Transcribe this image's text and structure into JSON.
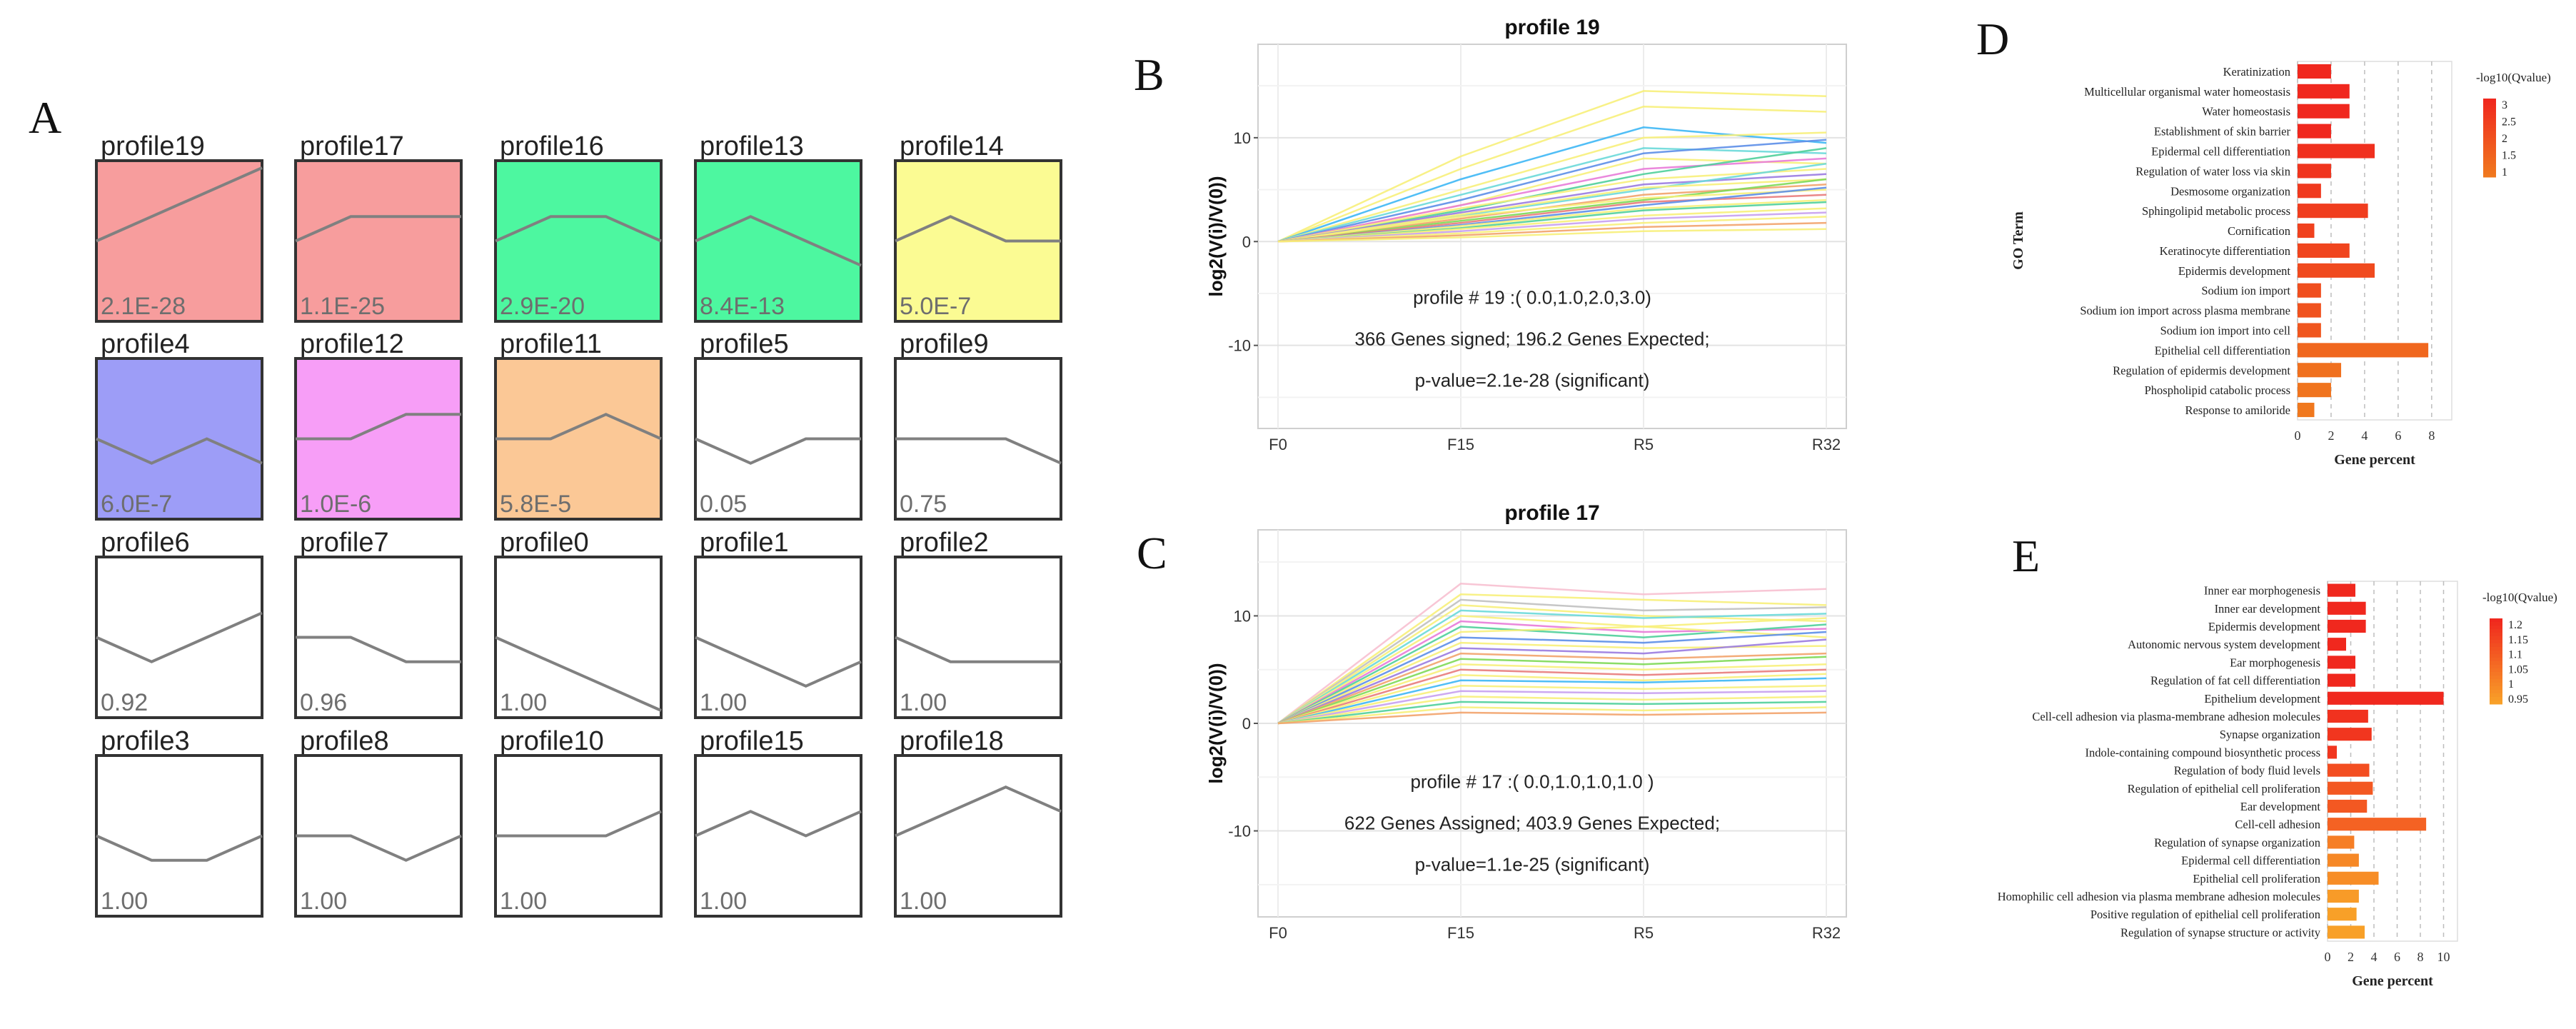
{
  "panels": {
    "A": "A",
    "B": "B",
    "C": "C",
    "D": "D",
    "E": "E"
  },
  "chart_data": [
    {
      "panel": "A",
      "type": "profile_grid",
      "x_points": 4,
      "profiles": [
        {
          "name": "profile19",
          "pvalue": "2.1E-28",
          "values": [
            0,
            1,
            2,
            3
          ],
          "color": "#f79d9d"
        },
        {
          "name": "profile17",
          "pvalue": "1.1E-25",
          "values": [
            0,
            1,
            1,
            1
          ],
          "color": "#f79d9d"
        },
        {
          "name": "profile16",
          "pvalue": "2.9E-20",
          "values": [
            0,
            1,
            1,
            0
          ],
          "color": "#4df7a0"
        },
        {
          "name": "profile13",
          "pvalue": "8.4E-13",
          "values": [
            0,
            1,
            0,
            -1
          ],
          "color": "#4df7a0"
        },
        {
          "name": "profile14",
          "pvalue": "5.0E-7",
          "values": [
            0,
            1,
            0,
            0
          ],
          "color": "#fbfb93"
        },
        {
          "name": "profile4",
          "pvalue": "6.0E-7",
          "values": [
            0,
            -1,
            0,
            -1
          ],
          "color": "#9d9df7"
        },
        {
          "name": "profile12",
          "pvalue": "1.0E-6",
          "values": [
            0,
            0,
            1,
            1
          ],
          "color": "#f79ef7"
        },
        {
          "name": "profile11",
          "pvalue": "5.8E-5",
          "values": [
            0,
            0,
            1,
            0
          ],
          "color": "#fbc896"
        },
        {
          "name": "profile5",
          "pvalue": "0.05",
          "values": [
            0,
            -1,
            0,
            0
          ],
          "color": "#ffffff"
        },
        {
          "name": "profile9",
          "pvalue": "0.75",
          "values": [
            0,
            0,
            0,
            -1
          ],
          "color": "#ffffff"
        },
        {
          "name": "profile6",
          "pvalue": "0.92",
          "values": [
            0,
            -1,
            0,
            1
          ],
          "color": "#ffffff"
        },
        {
          "name": "profile7",
          "pvalue": "0.96",
          "values": [
            0,
            0,
            -1,
            -1
          ],
          "color": "#ffffff"
        },
        {
          "name": "profile0",
          "pvalue": "1.00",
          "values": [
            0,
            -1,
            -2,
            -3
          ],
          "color": "#ffffff"
        },
        {
          "name": "profile1",
          "pvalue": "1.00",
          "values": [
            0,
            -1,
            -2,
            -1
          ],
          "color": "#ffffff"
        },
        {
          "name": "profile2",
          "pvalue": "1.00",
          "values": [
            0,
            -1,
            -1,
            -1
          ],
          "color": "#ffffff"
        },
        {
          "name": "profile3",
          "pvalue": "1.00",
          "values": [
            0,
            -1,
            -1,
            0
          ],
          "color": "#ffffff"
        },
        {
          "name": "profile8",
          "pvalue": "1.00",
          "values": [
            0,
            0,
            -1,
            0
          ],
          "color": "#ffffff"
        },
        {
          "name": "profile10",
          "pvalue": "1.00",
          "values": [
            0,
            0,
            0,
            1
          ],
          "color": "#ffffff"
        },
        {
          "name": "profile15",
          "pvalue": "1.00",
          "values": [
            0,
            1,
            0,
            1
          ],
          "color": "#ffffff"
        },
        {
          "name": "profile18",
          "pvalue": "1.00",
          "values": [
            0,
            1,
            2,
            1
          ],
          "color": "#ffffff"
        }
      ]
    },
    {
      "panel": "B",
      "type": "line",
      "title": "profile 19",
      "ylabel": "log2(V(i)/V(0))",
      "categories": [
        "F0",
        "F15",
        "R5",
        "R32"
      ],
      "yticks": [
        -10,
        0,
        10
      ],
      "ylim": [
        -18,
        19
      ],
      "annotations": [
        "profile # 19 :( 0.0,1.0,2.0,3.0)",
        "366 Genes signed; 196.2 Genes Expected;",
        "p-value=2.1e-28 (significant)"
      ],
      "series": [
        {
          "values": [
            0,
            8.2,
            14.5,
            14.0
          ],
          "color": "#f7f07a"
        },
        {
          "values": [
            0,
            7.0,
            13.0,
            12.5
          ],
          "color": "#f7f07a"
        },
        {
          "values": [
            0,
            6.0,
            11.0,
            9.5
          ],
          "color": "#3db7f5"
        },
        {
          "values": [
            0,
            5.0,
            10.0,
            10.5
          ],
          "color": "#f7f07a"
        },
        {
          "values": [
            0,
            4.5,
            9.0,
            8.5
          ],
          "color": "#6ad9d9"
        },
        {
          "values": [
            0,
            4.0,
            8.5,
            9.8
          ],
          "color": "#5c8ee8"
        },
        {
          "values": [
            0,
            3.5,
            8.0,
            7.5
          ],
          "color": "#f7f07a"
        },
        {
          "values": [
            0,
            3.5,
            7.0,
            8.0
          ],
          "color": "#e87bd8"
        },
        {
          "values": [
            0,
            3.0,
            6.5,
            9.0
          ],
          "color": "#4fcf9a"
        },
        {
          "values": [
            0,
            3.2,
            6.0,
            7.0
          ],
          "color": "#f7f07a"
        },
        {
          "values": [
            0,
            2.8,
            5.5,
            6.5
          ],
          "color": "#9a7be0"
        },
        {
          "values": [
            0,
            2.5,
            5.0,
            7.5
          ],
          "color": "#6ad9d9"
        },
        {
          "values": [
            0,
            2.6,
            5.2,
            6.0
          ],
          "color": "#f7f07a"
        },
        {
          "values": [
            0,
            2.2,
            4.5,
            5.5
          ],
          "color": "#f2a36b"
        },
        {
          "values": [
            0,
            2.0,
            4.0,
            6.0
          ],
          "color": "#7ed957"
        },
        {
          "values": [
            0,
            2.4,
            4.2,
            5.0
          ],
          "color": "#f7f07a"
        },
        {
          "values": [
            0,
            1.8,
            3.8,
            4.5
          ],
          "color": "#e87b7b"
        },
        {
          "values": [
            0,
            1.6,
            3.5,
            5.2
          ],
          "color": "#5c8ee8"
        },
        {
          "values": [
            0,
            1.5,
            3.2,
            4.0
          ],
          "color": "#f7f07a"
        },
        {
          "values": [
            0,
            1.3,
            3.0,
            3.8
          ],
          "color": "#4fcf9a"
        },
        {
          "values": [
            0,
            1.2,
            2.5,
            3.2
          ],
          "color": "#f7f07a"
        },
        {
          "values": [
            0,
            1.0,
            2.2,
            2.8
          ],
          "color": "#c7a0f0"
        },
        {
          "values": [
            0,
            0.8,
            1.8,
            2.4
          ],
          "color": "#f7f07a"
        },
        {
          "values": [
            0,
            0.6,
            1.4,
            1.8
          ],
          "color": "#f2a36b"
        },
        {
          "values": [
            0,
            0.4,
            1.0,
            1.2
          ],
          "color": "#f7f07a"
        }
      ]
    },
    {
      "panel": "C",
      "type": "line",
      "title": "profile 17",
      "ylabel": "log2(V(i)/V(0))",
      "categories": [
        "F0",
        "F15",
        "R5",
        "R32"
      ],
      "yticks": [
        -10,
        0,
        10
      ],
      "ylim": [
        -18,
        18
      ],
      "annotations": [
        "profile # 17 :( 0.0,1.0,1.0,1.0 )",
        "622 Genes Assigned; 403.9 Genes Expected;",
        "p-value=1.1e-25 (significant)"
      ],
      "series": [
        {
          "values": [
            0,
            13.0,
            12.0,
            12.5
          ],
          "color": "#f7c0d0"
        },
        {
          "values": [
            0,
            12.0,
            11.5,
            11.0
          ],
          "color": "#f7f07a"
        },
        {
          "values": [
            0,
            11.5,
            10.5,
            10.8
          ],
          "color": "#c0c0c0"
        },
        {
          "values": [
            0,
            11.0,
            10.0,
            9.5
          ],
          "color": "#f7f07a"
        },
        {
          "values": [
            0,
            10.5,
            9.8,
            10.2
          ],
          "color": "#6ad9d9"
        },
        {
          "values": [
            0,
            10.0,
            9.0,
            9.8
          ],
          "color": "#f7f07a"
        },
        {
          "values": [
            0,
            9.5,
            8.5,
            8.8
          ],
          "color": "#e87bd8"
        },
        {
          "values": [
            0,
            9.0,
            8.0,
            9.2
          ],
          "color": "#4fcf9a"
        },
        {
          "values": [
            0,
            8.5,
            9.0,
            8.0
          ],
          "color": "#f7f07a"
        },
        {
          "values": [
            0,
            8.0,
            7.5,
            8.5
          ],
          "color": "#5c8ee8"
        },
        {
          "values": [
            0,
            7.5,
            7.0,
            7.2
          ],
          "color": "#f7f07a"
        },
        {
          "values": [
            0,
            7.0,
            6.5,
            7.8
          ],
          "color": "#9a7be0"
        },
        {
          "values": [
            0,
            6.5,
            6.0,
            6.5
          ],
          "color": "#f2a36b"
        },
        {
          "values": [
            0,
            6.0,
            5.5,
            6.2
          ],
          "color": "#7ed957"
        },
        {
          "values": [
            0,
            5.5,
            5.0,
            5.5
          ],
          "color": "#f7f07a"
        },
        {
          "values": [
            0,
            5.0,
            4.5,
            5.0
          ],
          "color": "#e87b7b"
        },
        {
          "values": [
            0,
            4.5,
            4.0,
            4.6
          ],
          "color": "#f7f07a"
        },
        {
          "values": [
            0,
            4.0,
            3.8,
            4.2
          ],
          "color": "#3db7f5"
        },
        {
          "values": [
            0,
            3.5,
            3.2,
            3.5
          ],
          "color": "#f7f07a"
        },
        {
          "values": [
            0,
            3.0,
            2.8,
            3.0
          ],
          "color": "#c7a0f0"
        },
        {
          "values": [
            0,
            2.5,
            2.2,
            2.5
          ],
          "color": "#f7f07a"
        },
        {
          "values": [
            0,
            2.0,
            1.8,
            2.0
          ],
          "color": "#4fcf9a"
        },
        {
          "values": [
            0,
            1.5,
            1.2,
            1.5
          ],
          "color": "#f7f07a"
        },
        {
          "values": [
            0,
            1.0,
            0.8,
            1.0
          ],
          "color": "#f2a36b"
        }
      ]
    },
    {
      "panel": "D",
      "type": "bar",
      "orientation": "horizontal",
      "xlabel": "Gene percent",
      "ylabel": "GO Term",
      "xticks": [
        0,
        2,
        4,
        6,
        8
      ],
      "xlim": [
        0,
        9.2
      ],
      "legend_title": "-log10(Qvalue)",
      "legend_ticks": [
        "3",
        "2.5",
        "2",
        "1.5",
        "1"
      ],
      "categories": [
        "Keratinization",
        "Multicellular organismal water homeostasis",
        "Water homeostasis",
        "Establishment of skin barrier",
        "Epidermal cell differentiation",
        "Regulation of water loss via skin",
        "Desmosome organization",
        "Sphingolipid metabolic process",
        "Cornification",
        "Keratinocyte differentiation",
        "Epidermis development",
        "Sodium ion import",
        "Sodium ion import across plasma membrane",
        "Sodium ion import into cell",
        "Epithelial cell differentiation",
        "Regulation of epidermis development",
        "Phospholipid catabolic process",
        "Response to amiloride"
      ],
      "values": [
        2.0,
        3.1,
        3.1,
        2.0,
        4.6,
        2.0,
        1.4,
        4.2,
        1.0,
        3.1,
        4.6,
        1.4,
        1.4,
        1.4,
        7.8,
        2.6,
        2.0,
        1.0
      ],
      "qvalues": [
        3.0,
        3.0,
        3.0,
        3.0,
        2.8,
        2.7,
        2.6,
        2.5,
        2.4,
        2.3,
        2.2,
        2.1,
        2.0,
        1.9,
        1.5,
        1.3,
        1.2,
        1.1
      ]
    },
    {
      "panel": "E",
      "type": "bar",
      "orientation": "horizontal",
      "xlabel": "Gene percent",
      "xticks": [
        0,
        2,
        4,
        6,
        8,
        10
      ],
      "xlim": [
        0,
        11.2
      ],
      "legend_title": "-log10(Qvalue)",
      "legend_ticks": [
        "1.2",
        "1.15",
        "1.1",
        "1.05",
        "1",
        "0.95"
      ],
      "categories": [
        "Inner ear morphogenesis",
        "Inner ear development",
        "Epidermis development",
        "Autonomic nervous system development",
        "Ear morphogenesis",
        "Regulation of fat cell differentiation",
        "Epithelium development",
        "Cell-cell adhesion via plasma-membrane adhesion molecules",
        "Synapse organization",
        "Indole-containing compound biosynthetic process",
        "Regulation of body fluid levels",
        "Regulation of epithelial cell proliferation",
        "Ear development",
        "Cell-cell adhesion",
        "Regulation of synapse organization",
        "Epidermal cell differentiation",
        "Epithelial cell proliferation",
        "Homophilic cell adhesion via plasma membrane adhesion molecules",
        "Positive regulation of epithelial cell proliferation",
        "Regulation of synapse structure or activity"
      ],
      "values": [
        2.4,
        3.3,
        3.3,
        1.6,
        2.4,
        2.4,
        10.0,
        3.5,
        3.8,
        0.8,
        3.6,
        3.9,
        3.4,
        8.5,
        2.3,
        2.7,
        4.4,
        2.7,
        2.5,
        3.2
      ],
      "qvalues": [
        1.2,
        1.2,
        1.2,
        1.2,
        1.2,
        1.2,
        1.2,
        1.18,
        1.17,
        1.17,
        1.12,
        1.1,
        1.1,
        1.08,
        1.02,
        1.0,
        0.99,
        0.96,
        0.95,
        0.95
      ]
    }
  ]
}
